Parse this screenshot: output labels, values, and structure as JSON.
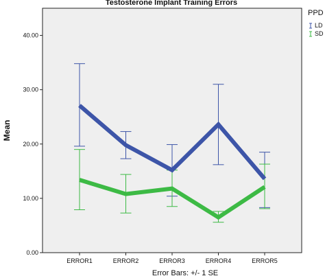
{
  "chart_data": {
    "type": "line",
    "title": "Testosterone Implant Training Errors",
    "ylabel": "Mean",
    "xlabel": "",
    "footnote": "Error Bars: +/- 1 SE",
    "categories": [
      "ERROR1",
      "ERROR2",
      "ERROR3",
      "ERROR4",
      "ERROR5"
    ],
    "ylim": [
      0,
      45
    ],
    "yticks": [
      0,
      10,
      20,
      30,
      40
    ],
    "ytick_labels": [
      "0.00",
      "10.00",
      "20.00",
      "30.00",
      "40.00"
    ],
    "grid": false,
    "legend": {
      "title": "PPD",
      "placement": "top-right",
      "entries": [
        "LD",
        "SD"
      ]
    },
    "series": [
      {
        "name": "LD",
        "color": "#3d55a8",
        "values": [
          27.1,
          19.8,
          15.2,
          23.6,
          13.6
        ],
        "se_upper": [
          34.8,
          22.3,
          19.9,
          31.0,
          18.5
        ],
        "se_lower": [
          19.6,
          17.3,
          10.4,
          16.2,
          8.3
        ]
      },
      {
        "name": "SD",
        "color": "#3dba45",
        "values": [
          13.4,
          10.8,
          11.8,
          6.5,
          12.1
        ],
        "se_upper": [
          19.0,
          14.4,
          15.2,
          7.6,
          16.3
        ],
        "se_lower": [
          7.9,
          7.3,
          8.5,
          5.6,
          8.1
        ]
      }
    ]
  }
}
